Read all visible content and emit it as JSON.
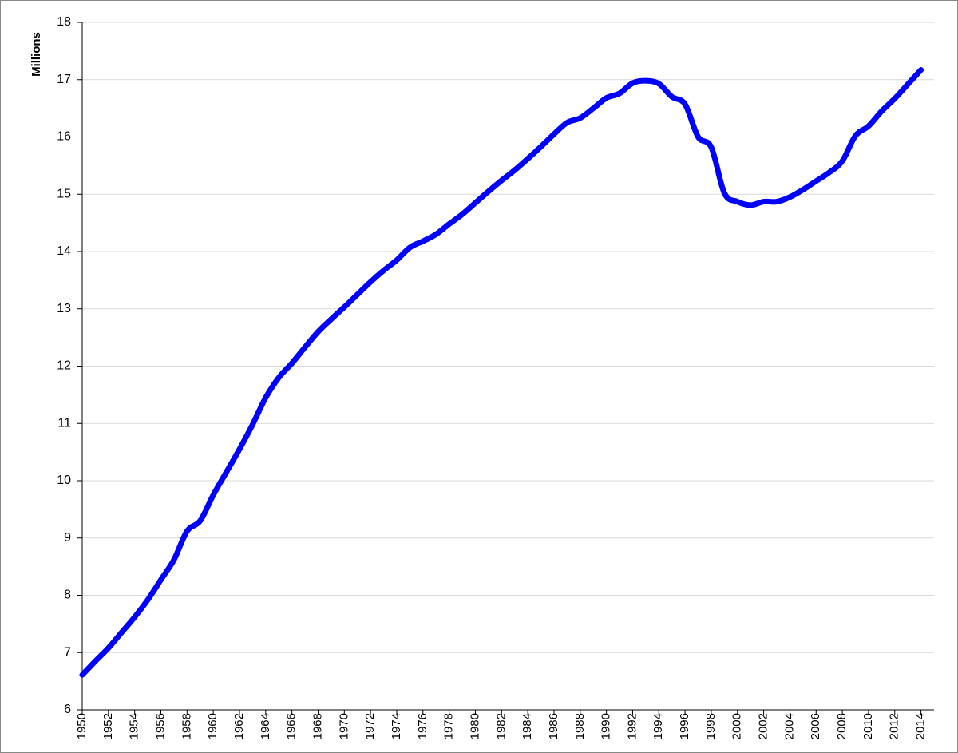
{
  "chart_data": {
    "type": "line",
    "y_label": "Millions",
    "x": [
      1950,
      1951,
      1952,
      1953,
      1954,
      1955,
      1956,
      1957,
      1958,
      1959,
      1960,
      1961,
      1962,
      1963,
      1964,
      1965,
      1966,
      1967,
      1968,
      1969,
      1970,
      1971,
      1972,
      1973,
      1974,
      1975,
      1976,
      1977,
      1978,
      1979,
      1980,
      1981,
      1982,
      1983,
      1984,
      1985,
      1986,
      1987,
      1988,
      1989,
      1990,
      1991,
      1992,
      1993,
      1994,
      1995,
      1996,
      1997,
      1998,
      1999,
      2000,
      2001,
      2002,
      2003,
      2004,
      2005,
      2006,
      2007,
      2008,
      2009,
      2010,
      2011,
      2012,
      2013,
      2014
    ],
    "values": [
      6.61,
      6.85,
      7.08,
      7.35,
      7.62,
      7.92,
      8.27,
      8.62,
      9.12,
      9.3,
      9.75,
      10.15,
      10.55,
      10.98,
      11.45,
      11.8,
      12.05,
      12.33,
      12.6,
      12.82,
      13.03,
      13.25,
      13.47,
      13.67,
      13.85,
      14.07,
      14.18,
      14.3,
      14.48,
      14.65,
      14.85,
      15.05,
      15.24,
      15.42,
      15.62,
      15.83,
      16.05,
      16.25,
      16.33,
      16.5,
      16.68,
      16.76,
      16.94,
      16.98,
      16.93,
      16.7,
      16.57,
      16.0,
      15.82,
      15.02,
      14.87,
      14.81,
      14.87,
      14.87,
      14.95,
      15.08,
      15.23,
      15.38,
      15.58,
      16.02,
      16.19,
      16.45,
      16.67,
      16.92,
      17.17
    ],
    "color": "#0000ff",
    "xlim": [
      1950,
      2015
    ],
    "xticks": [
      1950,
      1952,
      1954,
      1956,
      1958,
      1960,
      1962,
      1964,
      1966,
      1968,
      1970,
      1972,
      1974,
      1976,
      1978,
      1980,
      1982,
      1984,
      1986,
      1988,
      1990,
      1992,
      1994,
      1996,
      1998,
      2000,
      2002,
      2004,
      2006,
      2008,
      2010,
      2012,
      2014
    ],
    "ylim": [
      6,
      18
    ],
    "yticks": [
      6,
      7,
      8,
      9,
      10,
      11,
      12,
      13,
      14,
      15,
      16,
      17,
      18
    ],
    "grid": true
  }
}
